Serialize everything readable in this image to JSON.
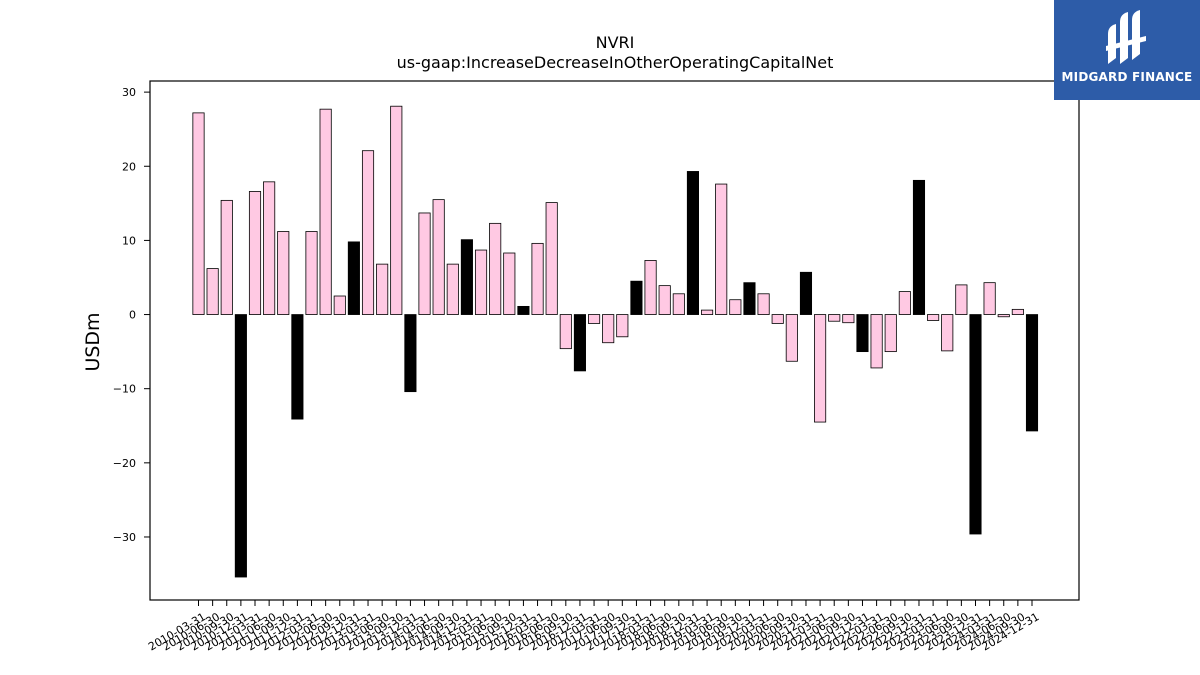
{
  "brand": {
    "name": "MIDGARD FINANCE",
    "icon": "midgard-logo-icon",
    "color": "#2d5ca8"
  },
  "chart_data": {
    "type": "bar",
    "title": "NVRI",
    "subtitle": "us-gaap:IncreaseDecreaseInOtherOperatingCapitalNet",
    "xlabel": "",
    "ylabel": "USDm",
    "ylim": [
      -38.5,
      31.5
    ],
    "yticks": [
      30,
      20,
      10,
      0,
      -10,
      -20,
      -30
    ],
    "ytick_labels": [
      "30",
      "20",
      "10",
      "0",
      "−10",
      "−20",
      "−30"
    ],
    "grid": false,
    "colors": {
      "positive_change": "#ffc9e3",
      "sign_flip": "#000000",
      "edge": "#000000"
    },
    "categories": [
      "2010-03-31",
      "2010-06-30",
      "2010-09-30",
      "2010-12-31",
      "2011-03-31",
      "2011-06-30",
      "2011-09-30",
      "2011-12-31",
      "2012-03-31",
      "2012-06-30",
      "2012-09-30",
      "2012-12-31",
      "2013-03-31",
      "2013-06-30",
      "2013-09-30",
      "2013-12-31",
      "2014-03-31",
      "2014-06-30",
      "2014-09-30",
      "2014-12-31",
      "2015-03-31",
      "2015-06-30",
      "2015-09-30",
      "2015-12-31",
      "2016-03-31",
      "2016-06-30",
      "2016-09-30",
      "2016-12-31",
      "2017-03-31",
      "2017-06-30",
      "2017-09-30",
      "2017-12-31",
      "2018-03-31",
      "2018-06-30",
      "2018-09-30",
      "2018-12-31",
      "2019-03-31",
      "2019-06-30",
      "2019-09-30",
      "2019-12-31",
      "2020-03-31",
      "2020-06-30",
      "2020-09-30",
      "2020-12-31",
      "2021-03-31",
      "2021-06-30",
      "2021-09-30",
      "2021-12-31",
      "2022-03-31",
      "2022-06-30",
      "2022-09-30",
      "2022-12-31",
      "2023-03-31",
      "2023-06-30",
      "2023-09-30",
      "2023-12-31",
      "2024-03-31",
      "2024-06-30",
      "2024-09-30",
      "2024-12-31"
    ],
    "values": [
      27.2,
      6.2,
      15.4,
      -35.4,
      16.6,
      17.9,
      11.2,
      -14.1,
      11.2,
      27.7,
      2.5,
      9.8,
      22.1,
      6.8,
      28.1,
      -10.4,
      13.7,
      15.5,
      6.8,
      10.1,
      8.7,
      12.3,
      8.3,
      1.1,
      9.6,
      15.1,
      -4.6,
      -7.6,
      -1.2,
      -3.8,
      -3.0,
      4.5,
      7.3,
      3.9,
      2.8,
      19.3,
      0.6,
      17.6,
      2.0,
      4.3,
      2.8,
      -1.2,
      -6.3,
      5.7,
      -14.5,
      -0.9,
      -1.1,
      -5.0,
      -7.2,
      -5.0,
      3.1,
      18.1,
      -0.8,
      -4.9,
      4.0,
      -29.6,
      4.3,
      -0.3,
      0.7,
      -15.7
    ],
    "highlight": [
      false,
      false,
      false,
      true,
      false,
      false,
      false,
      true,
      false,
      false,
      false,
      true,
      false,
      false,
      false,
      true,
      false,
      false,
      false,
      true,
      false,
      false,
      false,
      true,
      false,
      false,
      false,
      true,
      false,
      false,
      false,
      true,
      false,
      false,
      false,
      true,
      false,
      false,
      false,
      true,
      false,
      false,
      false,
      true,
      false,
      false,
      false,
      true,
      false,
      false,
      false,
      true,
      false,
      false,
      false,
      true,
      false,
      false,
      false,
      true
    ]
  }
}
